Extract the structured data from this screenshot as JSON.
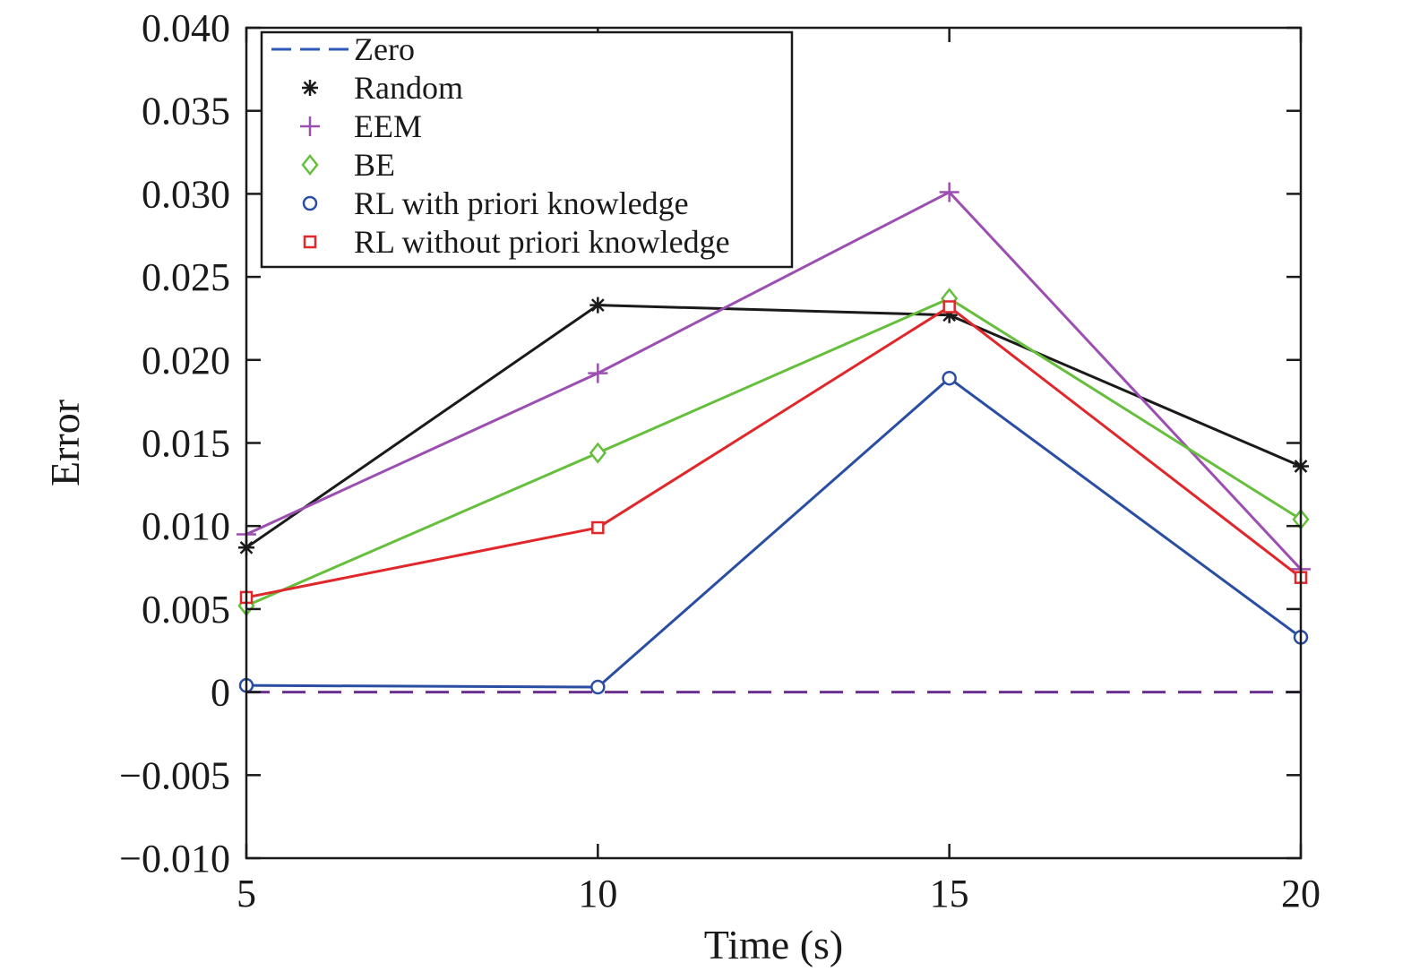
{
  "chart_data": {
    "type": "line",
    "title": "",
    "xlabel": "Time (s)",
    "ylabel": "Error",
    "xlim": [
      5,
      20
    ],
    "ylim": [
      -0.01,
      0.04
    ],
    "x": [
      5,
      10,
      15,
      20
    ],
    "xticks": [
      5,
      10,
      15,
      20
    ],
    "xtick_labels": [
      "5",
      "10",
      "15",
      "20"
    ],
    "yticks": [
      -0.01,
      -0.005,
      0,
      0.005,
      0.01,
      0.015,
      0.02,
      0.025,
      0.03,
      0.035,
      0.04
    ],
    "ytick_labels": [
      "−0.010",
      "−0.005",
      "0",
      "0.005",
      "0.010",
      "0.015",
      "0.020",
      "0.025",
      "0.030",
      "0.035",
      "0.040"
    ],
    "grid": false,
    "legend_position": "top-left",
    "series": [
      {
        "name": "Zero",
        "values": [
          0,
          0,
          0,
          0
        ],
        "color": "#2e59b8",
        "line_color": "#6a2f8f",
        "marker": "none",
        "dashed": true
      },
      {
        "name": "Random",
        "values": [
          0.0087,
          0.0233,
          0.0227,
          0.0136
        ],
        "color": "#1a1a1a",
        "marker": "asterisk"
      },
      {
        "name": "EEM",
        "values": [
          0.0095,
          0.0192,
          0.0301,
          0.0074
        ],
        "color": "#9b4fb0",
        "marker": "plus"
      },
      {
        "name": "BE",
        "values": [
          0.0052,
          0.0144,
          0.0237,
          0.0104
        ],
        "color": "#66bf3c",
        "marker": "diamond"
      },
      {
        "name": "RL with priori knowledge",
        "values": [
          0.0004,
          0.0003,
          0.0189,
          0.0033
        ],
        "color": "#2a4ea3",
        "marker": "circle"
      },
      {
        "name": "RL without priori knowledge",
        "values": [
          0.0057,
          0.0099,
          0.0232,
          0.0069
        ],
        "color": "#e0272b",
        "marker": "square"
      }
    ]
  }
}
